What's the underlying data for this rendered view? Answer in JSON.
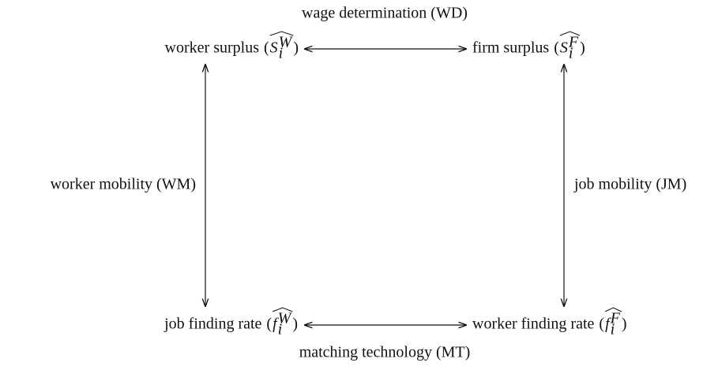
{
  "title": "wage determination (WD)",
  "nodes": [
    {
      "label": "worker surplus",
      "symbol": {
        "open": "(",
        "base": "S",
        "sup": "W",
        "sub": "i",
        "close": ")"
      }
    },
    {
      "label": "firm surplus",
      "symbol": {
        "open": "(",
        "base": "S",
        "sup": "F",
        "sub": "i",
        "close": ")"
      }
    },
    {
      "label": "job finding rate",
      "symbol": {
        "open": "(",
        "base": "f",
        "sup": "W",
        "sub": "i",
        "close": ")"
      }
    },
    {
      "label": "worker finding rate",
      "symbol": {
        "open": "(",
        "base": "f",
        "sup": "F",
        "sub": "i",
        "close": ")"
      }
    }
  ],
  "edges": [
    {
      "label": "wage determination (WD)"
    },
    {
      "label": "worker mobility (WM)"
    },
    {
      "label": "job mobility (JM)"
    },
    {
      "label": "matching technology (MT)"
    }
  ]
}
